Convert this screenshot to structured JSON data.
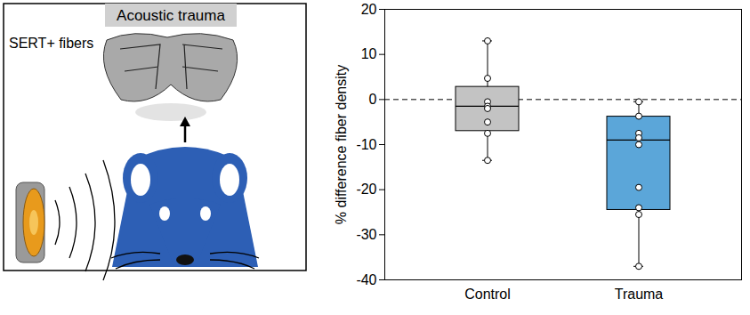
{
  "panel": {
    "title": "Acoustic trauma",
    "label": "SERT+ fibers"
  },
  "chart_data": {
    "type": "box",
    "categories": [
      "Control",
      "Trauma"
    ],
    "colors": [
      "#c3c3c3",
      "#5ba6d9"
    ],
    "boxes": [
      {
        "min": -13.5,
        "q1": -7,
        "median": -1.5,
        "q3": 2.8,
        "max": 13
      },
      {
        "min": -37,
        "q1": -24.5,
        "median": -9,
        "q3": -3.8,
        "max": -0.5
      }
    ],
    "points": [
      [
        13,
        4.7,
        -0.5,
        -1.5,
        -2,
        -5,
        -7.5,
        -13.5
      ],
      [
        -0.5,
        -3.7,
        -7.5,
        -8.5,
        -10,
        -19.5,
        -24,
        -25.5,
        -37
      ]
    ],
    "reference_line": 0,
    "ylabel": "% difference fiber density",
    "ylim": [
      -40,
      20
    ],
    "yticks": [
      -40,
      -30,
      -20,
      -10,
      0,
      10,
      20
    ],
    "grid": false
  }
}
